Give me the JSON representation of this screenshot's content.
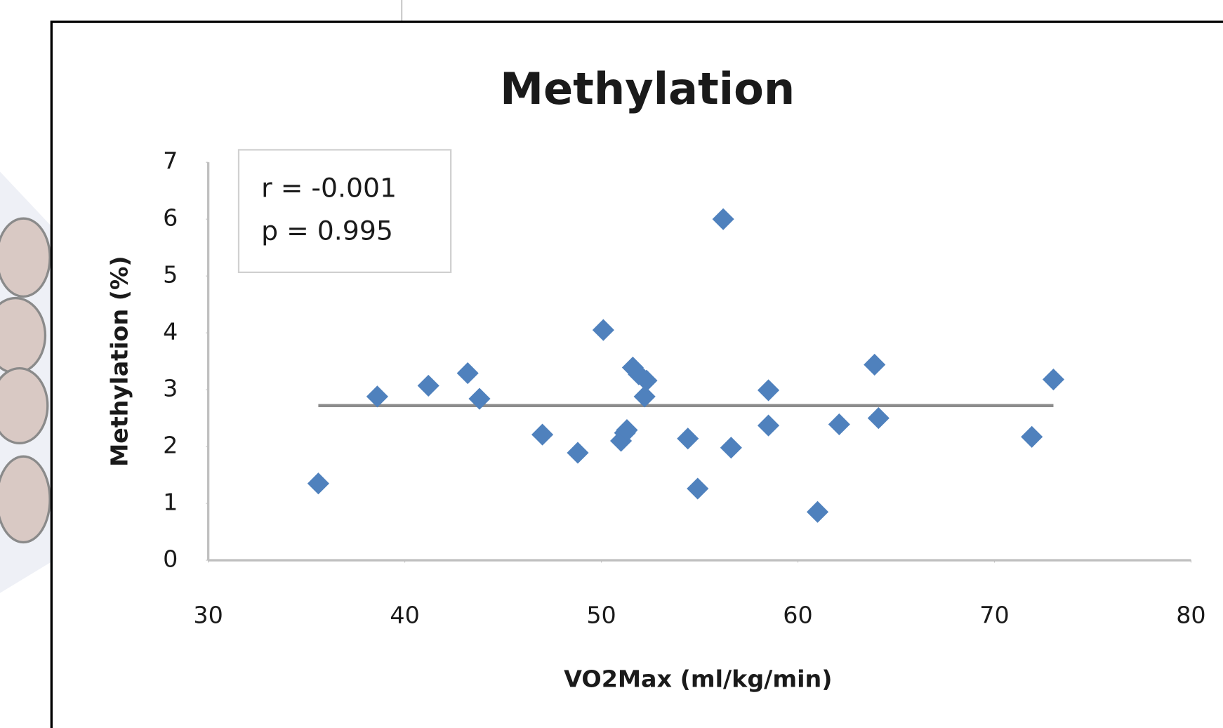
{
  "chart_data": {
    "type": "scatter",
    "title": "Methylation",
    "x_label": "VO2Max (ml/kg/min)",
    "y_label": "Methylation (%)",
    "annotations": [
      "r = -0.001",
      "p = 0.995"
    ],
    "color": "#4f81bd",
    "x": [
      35.6,
      38.6,
      41.2,
      43.2,
      43.8,
      47.0,
      48.8,
      50.1,
      51.0,
      51.2,
      51.3,
      51.6,
      51.9,
      52.3,
      52.2,
      54.4,
      54.9,
      56.2,
      56.6,
      58.5,
      58.5,
      61.0,
      62.1,
      63.9,
      64.1,
      71.9,
      73.0
    ],
    "values": [
      1.35,
      2.88,
      3.07,
      3.29,
      2.84,
      2.21,
      1.89,
      4.05,
      2.1,
      2.24,
      2.29,
      3.39,
      3.27,
      3.16,
      2.88,
      2.14,
      1.26,
      6.0,
      1.98,
      2.37,
      2.99,
      0.85,
      2.39,
      3.44,
      2.5,
      2.17,
      3.18
    ],
    "trendline": {
      "color": "#8c8c8c",
      "x": [
        35.6,
        73.0
      ],
      "values": [
        2.72,
        2.72
      ]
    },
    "xlim": [
      30,
      80
    ],
    "xticks": [
      30,
      40,
      50,
      60,
      70,
      80
    ],
    "ylim": [
      0,
      7
    ],
    "yticks": [
      0,
      1,
      2,
      3,
      4,
      5,
      6,
      7
    ],
    "grid": false
  }
}
